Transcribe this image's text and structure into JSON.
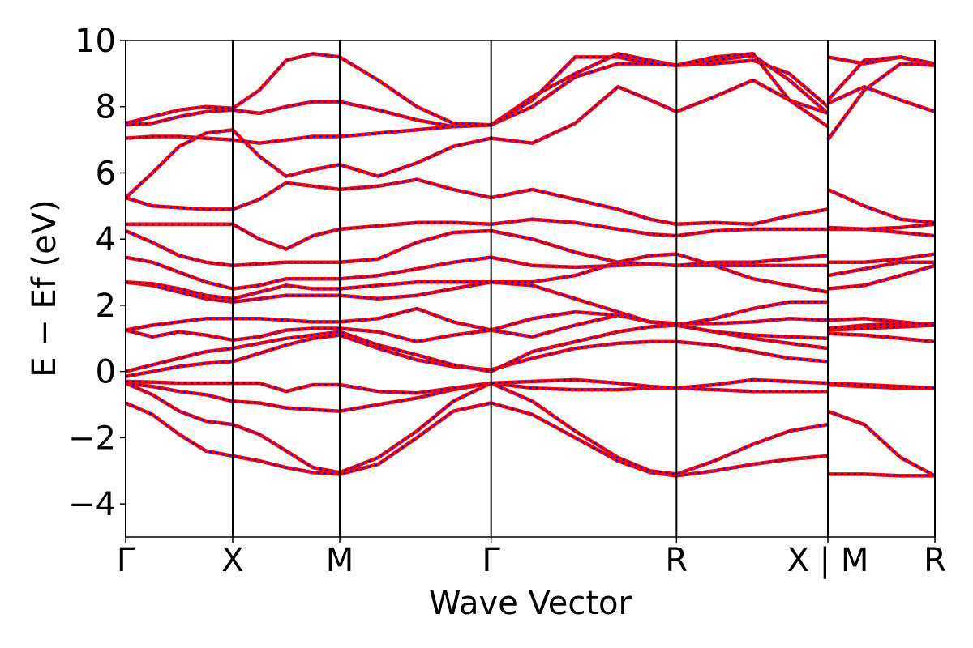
{
  "chart_data": {
    "type": "line",
    "xlabel": "Wave Vector",
    "ylabel": "E − Ef (eV)",
    "xlim": [
      0,
      3.78
    ],
    "ylim": [
      -5,
      10
    ],
    "xticks": [
      {
        "value": 0,
        "label": "Γ"
      },
      {
        "value": 0.5,
        "label": "X"
      },
      {
        "value": 1.0,
        "label": "M"
      },
      {
        "value": 1.707,
        "label": "Γ"
      },
      {
        "value": 2.573,
        "label": "R"
      },
      {
        "value": 3.28,
        "label": "X | M"
      },
      {
        "value": 3.78,
        "label": "R"
      }
    ],
    "yticks": [
      {
        "value": -4,
        "label": "−4"
      },
      {
        "value": -2,
        "label": "−2"
      },
      0,
      2,
      4,
      6,
      8,
      10
    ],
    "line_color": "#ff0000",
    "dash_color": "#0000ff",
    "x": [
      0,
      0.125,
      0.25,
      0.375,
      0.5,
      0.625,
      0.75,
      0.875,
      1.0,
      1.18,
      1.36,
      1.53,
      1.707,
      1.9,
      2.1,
      2.3,
      2.45,
      2.573,
      2.75,
      2.93,
      3.1,
      3.28,
      3.28,
      3.28,
      3.45,
      3.62,
      3.78
    ],
    "series": [
      {
        "values": [
          -0.95,
          -1.3,
          -1.9,
          -2.4,
          -2.55,
          -2.7,
          -2.9,
          -3.05,
          -3.1,
          -2.8,
          -2.0,
          -1.2,
          -0.95,
          -1.3,
          -2.0,
          -2.7,
          -3.05,
          -3.15,
          -3.0,
          -2.8,
          -2.65,
          -2.55,
          null,
          -3.1,
          -3.1,
          -3.15,
          -3.15
        ]
      },
      {
        "values": [
          -0.35,
          -0.7,
          -1.2,
          -1.5,
          -1.6,
          -1.9,
          -2.4,
          -2.9,
          -3.05,
          -2.6,
          -1.8,
          -0.9,
          -0.35,
          -0.9,
          -1.8,
          -2.6,
          -3.0,
          -3.1,
          -2.7,
          -2.2,
          -1.8,
          -1.6,
          null,
          -1.2,
          -1.6,
          -2.6,
          -3.15
        ]
      },
      {
        "values": [
          -0.35,
          -0.45,
          -0.6,
          -0.7,
          -0.9,
          -0.95,
          -1.1,
          -1.15,
          -1.2,
          -1.0,
          -0.8,
          -0.55,
          -0.35,
          -0.5,
          -0.55,
          -0.55,
          -0.5,
          -0.5,
          -0.55,
          -0.6,
          -0.6,
          -0.6,
          null,
          -0.4,
          -0.45,
          -0.5,
          -0.5
        ]
      },
      {
        "values": [
          -0.3,
          -0.32,
          -0.35,
          -0.35,
          -0.35,
          -0.35,
          -0.6,
          -0.4,
          -0.4,
          -0.6,
          -0.65,
          -0.5,
          -0.35,
          -0.3,
          -0.25,
          -0.35,
          -0.45,
          -0.5,
          -0.4,
          -0.25,
          -0.3,
          -0.35,
          null,
          -0.35,
          -0.4,
          -0.45,
          -0.5
        ]
      },
      {
        "values": [
          -0.15,
          0.0,
          0.15,
          0.25,
          0.3,
          0.55,
          0.8,
          1.0,
          1.1,
          0.7,
          0.35,
          0.15,
          0.05,
          0.4,
          0.7,
          0.85,
          0.9,
          0.9,
          0.8,
          0.6,
          0.4,
          0.3,
          null,
          1.15,
          1.1,
          1.0,
          0.9
        ]
      },
      {
        "values": [
          0.0,
          0.2,
          0.4,
          0.6,
          0.7,
          0.85,
          1.0,
          1.1,
          1.2,
          0.8,
          0.5,
          0.2,
          0.0,
          0.6,
          0.9,
          1.2,
          1.35,
          1.4,
          1.2,
          1.0,
          0.85,
          0.7,
          null,
          1.25,
          1.3,
          1.35,
          1.4
        ]
      },
      {
        "values": [
          1.25,
          1.05,
          1.2,
          1.1,
          0.95,
          1.05,
          1.25,
          1.3,
          1.3,
          1.2,
          0.9,
          1.1,
          1.25,
          1.05,
          1.4,
          1.7,
          1.5,
          1.4,
          1.2,
          1.1,
          1.05,
          1.0,
          null,
          1.3,
          1.4,
          1.45,
          1.45
        ]
      },
      {
        "values": [
          1.25,
          1.4,
          1.5,
          1.6,
          1.6,
          1.6,
          1.55,
          1.5,
          1.5,
          1.6,
          1.9,
          1.5,
          1.25,
          1.6,
          1.8,
          1.7,
          1.5,
          1.45,
          1.45,
          1.5,
          1.6,
          1.55,
          null,
          1.55,
          1.6,
          1.5,
          1.4
        ]
      },
      {
        "values": [
          2.7,
          2.6,
          2.4,
          2.2,
          2.1,
          2.2,
          2.3,
          2.3,
          2.3,
          2.2,
          2.3,
          2.5,
          2.7,
          2.6,
          2.2,
          1.8,
          1.5,
          1.4,
          1.6,
          1.9,
          2.1,
          2.1,
          null,
          2.5,
          2.6,
          2.9,
          3.2
        ]
      },
      {
        "values": [
          2.7,
          2.65,
          2.5,
          2.3,
          2.2,
          2.4,
          2.6,
          2.5,
          2.5,
          2.6,
          2.7,
          2.7,
          2.7,
          2.7,
          2.9,
          3.3,
          3.5,
          3.55,
          3.2,
          2.8,
          2.6,
          2.4,
          null,
          2.9,
          3.1,
          3.3,
          3.3
        ]
      },
      {
        "values": [
          3.45,
          3.3,
          3.0,
          2.7,
          2.5,
          2.6,
          2.8,
          2.8,
          2.8,
          2.9,
          3.1,
          3.3,
          3.45,
          3.2,
          3.15,
          3.2,
          3.25,
          3.2,
          3.2,
          3.2,
          3.2,
          3.2,
          null,
          3.3,
          3.3,
          3.4,
          3.55
        ]
      },
      {
        "values": [
          4.25,
          3.9,
          3.5,
          3.3,
          3.2,
          3.25,
          3.3,
          3.3,
          3.3,
          3.4,
          3.9,
          4.2,
          4.25,
          4.0,
          3.6,
          3.3,
          3.25,
          3.2,
          3.3,
          3.3,
          3.4,
          3.5,
          null,
          4.3,
          4.3,
          4.2,
          4.1
        ]
      },
      {
        "values": [
          4.45,
          4.45,
          4.45,
          4.45,
          4.45,
          4.0,
          3.7,
          4.1,
          4.3,
          4.4,
          4.5,
          4.5,
          4.45,
          4.6,
          4.5,
          4.3,
          4.15,
          4.1,
          4.25,
          4.3,
          4.3,
          4.3,
          null,
          4.35,
          4.3,
          4.35,
          4.45
        ]
      },
      {
        "values": [
          5.25,
          5.0,
          4.95,
          4.9,
          4.9,
          5.2,
          5.7,
          5.6,
          5.5,
          5.6,
          5.8,
          5.5,
          5.25,
          5.5,
          5.2,
          4.9,
          4.6,
          4.45,
          4.5,
          4.45,
          4.7,
          4.9,
          null,
          5.5,
          5.0,
          4.6,
          4.5
        ]
      },
      {
        "values": [
          5.25,
          6.0,
          6.8,
          7.2,
          7.3,
          6.5,
          5.9,
          6.1,
          6.25,
          5.9,
          6.3,
          6.8,
          7.05,
          6.9,
          7.5,
          8.6,
          8.2,
          7.85,
          8.3,
          8.8,
          8.2,
          7.8,
          null,
          8.1,
          8.6,
          8.2,
          7.85
        ]
      },
      {
        "values": [
          7.05,
          7.1,
          7.1,
          7.05,
          7.0,
          6.9,
          7.0,
          7.1,
          7.1,
          7.2,
          7.3,
          7.4,
          7.45,
          8.0,
          8.9,
          9.3,
          9.3,
          9.25,
          9.3,
          9.4,
          9.0,
          8.0,
          null,
          7.0,
          8.5,
          9.3,
          9.25
        ]
      },
      {
        "values": [
          7.45,
          7.5,
          7.7,
          7.85,
          7.9,
          7.8,
          8.0,
          8.15,
          8.15,
          7.9,
          7.6,
          7.4,
          7.45,
          8.3,
          9.0,
          9.6,
          9.4,
          9.25,
          9.4,
          9.55,
          8.8,
          7.8,
          null,
          9.5,
          9.3,
          9.5,
          9.25
        ]
      },
      {
        "values": [
          7.5,
          7.7,
          7.9,
          8.0,
          7.95,
          8.5,
          9.4,
          9.6,
          9.5,
          8.8,
          8.0,
          7.5,
          7.45,
          8.2,
          9.5,
          9.5,
          9.3,
          9.25,
          9.5,
          9.6,
          8.2,
          7.4,
          null,
          8.2,
          9.4,
          9.5,
          9.3
        ]
      }
    ]
  }
}
